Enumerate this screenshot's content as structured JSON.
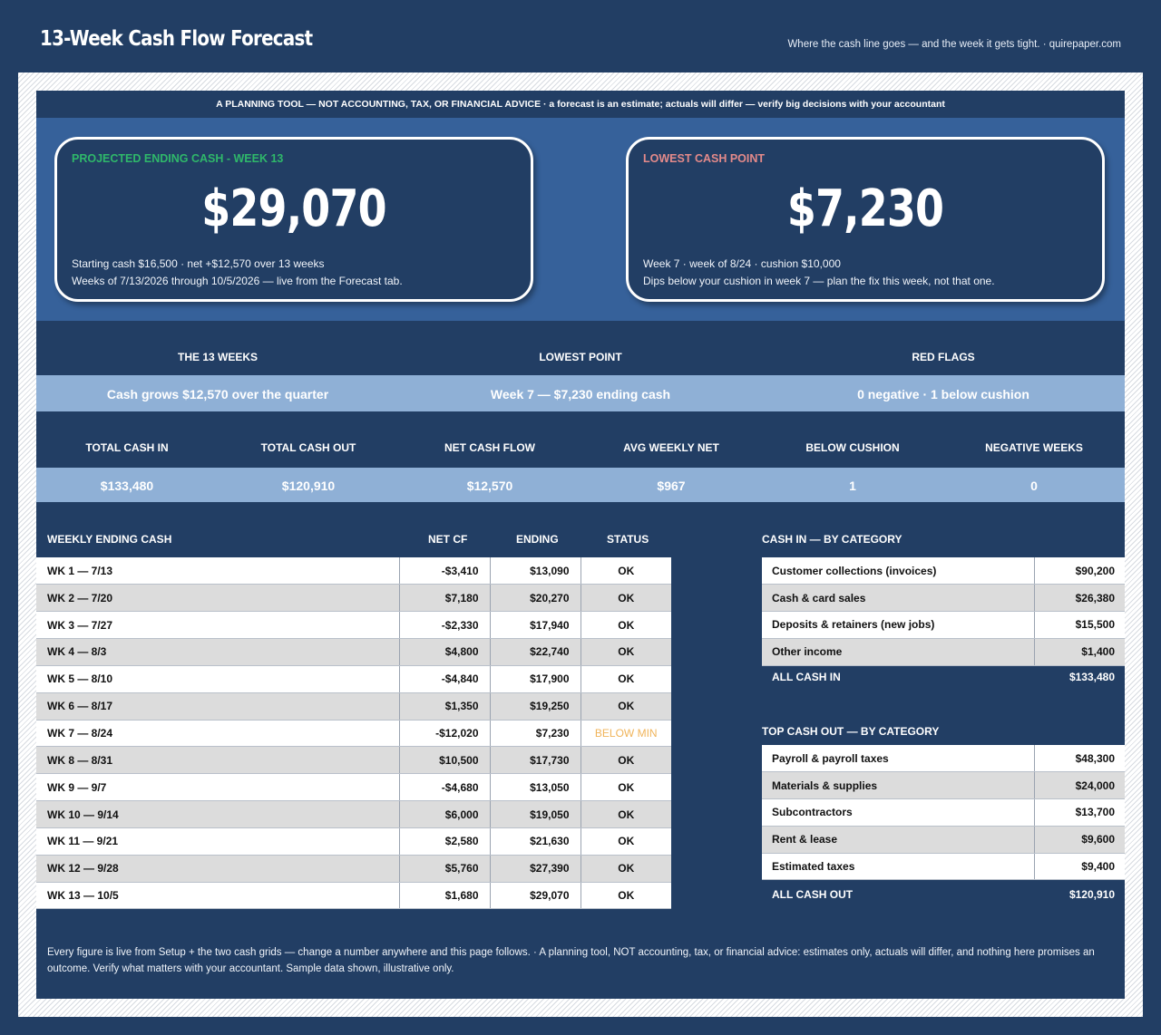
{
  "header": {
    "title": "13-Week Cash Flow Forecast",
    "tagline": "Where the cash line goes — and the week it gets tight.  ·  quirepaper.com"
  },
  "disclaimer": "A PLANNING TOOL — NOT ACCOUNTING, TAX, OR FINANCIAL ADVICE  ·  a forecast is an estimate; actuals will differ — verify big decisions with your accountant",
  "cards": {
    "ending": {
      "label": "PROJECTED ENDING CASH - WEEK 13",
      "value": "$29,070",
      "line1": "Starting cash $16,500  ·  net +$12,570 over 13 weeks",
      "line2": "Weeks of 7/13/2026 through 10/5/2026 — live from the Forecast tab."
    },
    "lowest": {
      "label": "LOWEST CASH POINT",
      "value": "$7,230",
      "line1": "Week 7  ·  week of 8/24  ·  cushion $10,000",
      "line2": "Dips below your cushion in week 7 — plan the fix this week, not that one."
    }
  },
  "summary": {
    "headers": [
      "THE 13 WEEKS",
      "LOWEST POINT",
      "RED FLAGS"
    ],
    "values": [
      "Cash grows $12,570 over the quarter",
      "Week 7 — $7,230 ending cash",
      "0 negative  ·  1 below cushion"
    ]
  },
  "kpis": {
    "headers": [
      "TOTAL CASH IN",
      "TOTAL CASH OUT",
      "NET CASH FLOW",
      "AVG WEEKLY NET",
      "BELOW CUSHION",
      "NEGATIVE WEEKS"
    ],
    "values": [
      "$133,480",
      "$120,910",
      "$12,570",
      "$967",
      "1",
      "0"
    ]
  },
  "weekly": {
    "title": "WEEKLY ENDING CASH",
    "col_net": "NET CF",
    "col_ending": "ENDING",
    "col_status": "STATUS",
    "rows": [
      {
        "week": "WK 1 — 7/13",
        "net": "-$3,410",
        "ending": "$13,090",
        "status": "OK"
      },
      {
        "week": "WK 2 — 7/20",
        "net": "$7,180",
        "ending": "$20,270",
        "status": "OK"
      },
      {
        "week": "WK 3 — 7/27",
        "net": "-$2,330",
        "ending": "$17,940",
        "status": "OK"
      },
      {
        "week": "WK 4 — 8/3",
        "net": "$4,800",
        "ending": "$22,740",
        "status": "OK"
      },
      {
        "week": "WK 5 — 8/10",
        "net": "-$4,840",
        "ending": "$17,900",
        "status": "OK"
      },
      {
        "week": "WK 6 — 8/17",
        "net": "$1,350",
        "ending": "$19,250",
        "status": "OK"
      },
      {
        "week": "WK 7 — 8/24",
        "net": "-$12,020",
        "ending": "$7,230",
        "status": "BELOW MIN"
      },
      {
        "week": "WK 8 — 8/31",
        "net": "$10,500",
        "ending": "$17,730",
        "status": "OK"
      },
      {
        "week": "WK 9 — 9/7",
        "net": "-$4,680",
        "ending": "$13,050",
        "status": "OK"
      },
      {
        "week": "WK 10 — 9/14",
        "net": "$6,000",
        "ending": "$19,050",
        "status": "OK"
      },
      {
        "week": "WK 11 — 9/21",
        "net": "$2,580",
        "ending": "$21,630",
        "status": "OK"
      },
      {
        "week": "WK 12 — 9/28",
        "net": "$5,760",
        "ending": "$27,390",
        "status": "OK"
      },
      {
        "week": "WK 13 — 10/5",
        "net": "$1,680",
        "ending": "$29,070",
        "status": "OK"
      }
    ]
  },
  "cash_in": {
    "title": "CASH IN — BY CATEGORY",
    "rows": [
      {
        "label": "Customer collections (invoices)",
        "amount": "$90,200"
      },
      {
        "label": "Cash & card sales",
        "amount": "$26,380"
      },
      {
        "label": "Deposits & retainers (new jobs)",
        "amount": "$15,500"
      },
      {
        "label": "Other income",
        "amount": "$1,400"
      }
    ],
    "total_label": "ALL CASH IN",
    "total": "$133,480"
  },
  "cash_out": {
    "title": "TOP CASH OUT — BY CATEGORY",
    "rows": [
      {
        "label": "Payroll & payroll taxes",
        "amount": "$48,300"
      },
      {
        "label": "Materials & supplies",
        "amount": "$24,000"
      },
      {
        "label": "Subcontractors",
        "amount": "$13,700"
      },
      {
        "label": "Rent & lease",
        "amount": "$9,600"
      },
      {
        "label": "Estimated taxes",
        "amount": "$9,400"
      }
    ],
    "total_label": "ALL CASH OUT",
    "total": "$120,910"
  },
  "footer": "Every figure is live from Setup + the two cash grids — change a number anywhere and this page follows.  ·  A planning tool, NOT accounting, tax, or financial advice: estimates only, actuals will differ, and nothing here promises an outcome. Verify what matters with your accountant. Sample data shown, illustrative only.",
  "colors": {
    "navy": "#223e64",
    "hero_blue": "#36619a",
    "band_blue": "#8fb0d6",
    "green_label": "#2fb86a",
    "red_label": "#e48a8a",
    "warning": "#f0b45a"
  }
}
